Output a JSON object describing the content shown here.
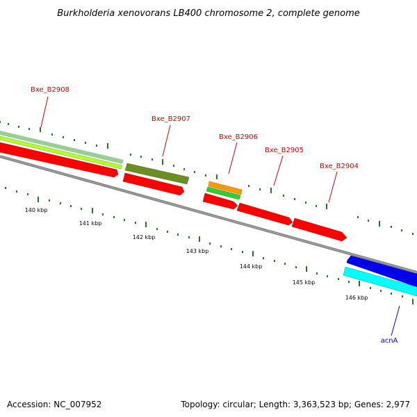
{
  "title": "Burkholderia xenovorans LB400 chromosome 2, complete genome",
  "footer": {
    "accession": "Accession: NC_007952",
    "summary": "Topology: circular; Length: 3,363,523 bp; Genes: 2,977"
  },
  "colors": {
    "backbone": "#7f7f7f",
    "tick_green": "#1f7a1f",
    "cds_red": "#ff0000",
    "label_red": "#cc0000",
    "label_blue": "#0000cc",
    "light_green": "#b3ff33",
    "pale_green": "#99cc99",
    "olive": "#6b8e23",
    "orange": "#ff9900",
    "mid_green": "#33cc33",
    "blue": "#0000ee",
    "cyan": "#00ffff"
  },
  "gene_labels": [
    {
      "name": "Bxe_B2908",
      "color": "red"
    },
    {
      "name": "Bxe_B2907",
      "color": "red"
    },
    {
      "name": "Bxe_B2906",
      "color": "red"
    },
    {
      "name": "Bxe_B2905",
      "color": "red"
    },
    {
      "name": "Bxe_B2904",
      "color": "red"
    },
    {
      "name": "acnA",
      "color": "blue"
    }
  ],
  "kbp_labels": [
    "140 kbp",
    "141 kbp",
    "142 kbp",
    "143 kbp",
    "144 kbp",
    "145 kbp",
    "146 kbp"
  ]
}
